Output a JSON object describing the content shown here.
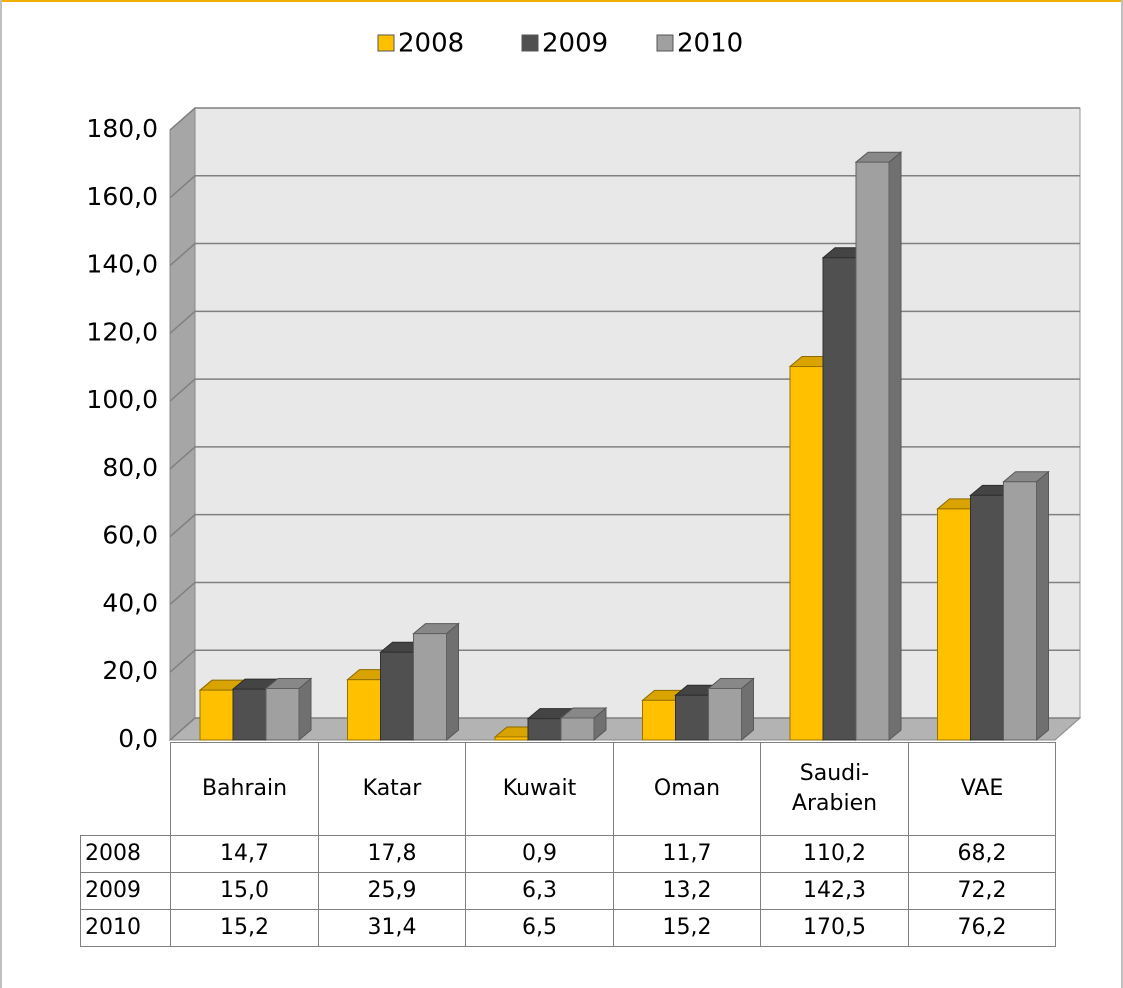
{
  "chart_data": {
    "type": "bar3d",
    "categories": [
      "Bahrain",
      "Katar",
      "Kuwait",
      "Oman",
      "Saudi-\nArabien",
      "VAE"
    ],
    "series": [
      {
        "name": "2008",
        "color": "#FFC000",
        "values": [
          14.7,
          17.8,
          0.9,
          11.7,
          110.2,
          68.2
        ],
        "value_labels": [
          "14,7",
          "17,8",
          "0,9",
          "11,7",
          "110,2",
          "68,2"
        ]
      },
      {
        "name": "2009",
        "color": "#505050",
        "values": [
          15.0,
          25.9,
          6.3,
          13.2,
          142.3,
          72.2
        ],
        "value_labels": [
          "15,0",
          "25,9",
          "6,3",
          "13,2",
          "142,3",
          "72,2"
        ]
      },
      {
        "name": "2010",
        "color": "#A0A0A0",
        "values": [
          15.2,
          31.4,
          6.5,
          15.2,
          170.5,
          76.2
        ],
        "value_labels": [
          "15,2",
          "31,4",
          "6,5",
          "15,2",
          "170,5",
          "76,2"
        ]
      }
    ],
    "ylim": [
      0,
      180
    ],
    "yticks": [
      {
        "value": 0,
        "label": "0,0"
      },
      {
        "value": 20,
        "label": "20,0"
      },
      {
        "value": 40,
        "label": "40,0"
      },
      {
        "value": 60,
        "label": "60,0"
      },
      {
        "value": 80,
        "label": "80,0"
      },
      {
        "value": 100,
        "label": "100,0"
      },
      {
        "value": 120,
        "label": "120,0"
      },
      {
        "value": 140,
        "label": "140,0"
      },
      {
        "value": 160,
        "label": "160,0"
      },
      {
        "value": 180,
        "label": "180,0"
      }
    ],
    "grid": true,
    "legend": "top",
    "data_table": true
  }
}
